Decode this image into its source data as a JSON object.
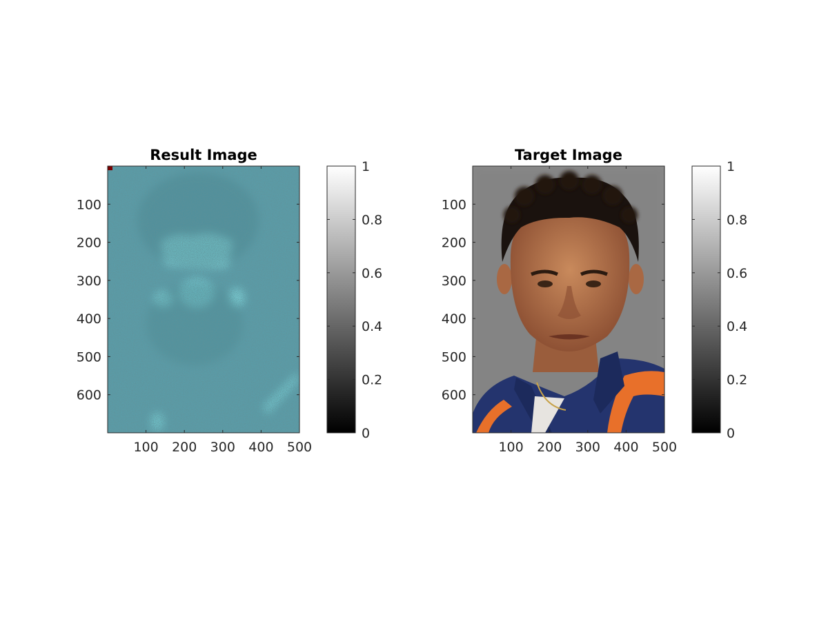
{
  "figure": {
    "background": "#ffffff"
  },
  "chart_data": [
    {
      "type": "heatmap",
      "title": "Result Image",
      "xlabel": "",
      "ylabel": "",
      "xlim": [
        0,
        500
      ],
      "ylim": [
        0,
        700
      ],
      "y_reversed": true,
      "xticks": [
        100,
        200,
        300,
        400,
        500
      ],
      "yticks": [
        100,
        200,
        300,
        400,
        500,
        600
      ],
      "xticklabels": [
        "100",
        "200",
        "300",
        "400",
        "500"
      ],
      "yticklabels": [
        "100",
        "200",
        "300",
        "400",
        "500",
        "600"
      ],
      "image": {
        "description_colors": {
          "base": "#5a9ca8",
          "highlight": "#7fd6dc",
          "dark_speck": "#2e5a62",
          "corner_marker": "#7a0000"
        }
      },
      "colorbar": {
        "colormap": "gray",
        "range": [
          0,
          1
        ],
        "ticks": [
          0,
          0.2,
          0.4,
          0.6,
          0.8,
          1
        ],
        "ticklabels": [
          "0",
          "0.2",
          "0.4",
          "0.6",
          "0.8",
          "1"
        ]
      }
    },
    {
      "type": "heatmap",
      "title": "Target Image",
      "xlabel": "",
      "ylabel": "",
      "xlim": [
        0,
        500
      ],
      "ylim": [
        0,
        700
      ],
      "y_reversed": true,
      "xticks": [
        100,
        200,
        300,
        400,
        500
      ],
      "yticks": [
        100,
        200,
        300,
        400,
        500,
        600
      ],
      "xticklabels": [
        "100",
        "200",
        "300",
        "400",
        "500"
      ],
      "yticklabels": [
        "100",
        "200",
        "300",
        "400",
        "500",
        "600"
      ],
      "image": {
        "description_colors": {
          "background": "#8c8c8c",
          "hair": "#1a120e",
          "skin": "#b5744e",
          "shirt": "#24346e",
          "accent": "#e8702a"
        }
      },
      "colorbar": {
        "colormap": "gray",
        "range": [
          0,
          1
        ],
        "ticks": [
          0,
          0.2,
          0.4,
          0.6,
          0.8,
          1
        ],
        "ticklabels": [
          "0",
          "0.2",
          "0.4",
          "0.6",
          "0.8",
          "1"
        ]
      }
    }
  ]
}
